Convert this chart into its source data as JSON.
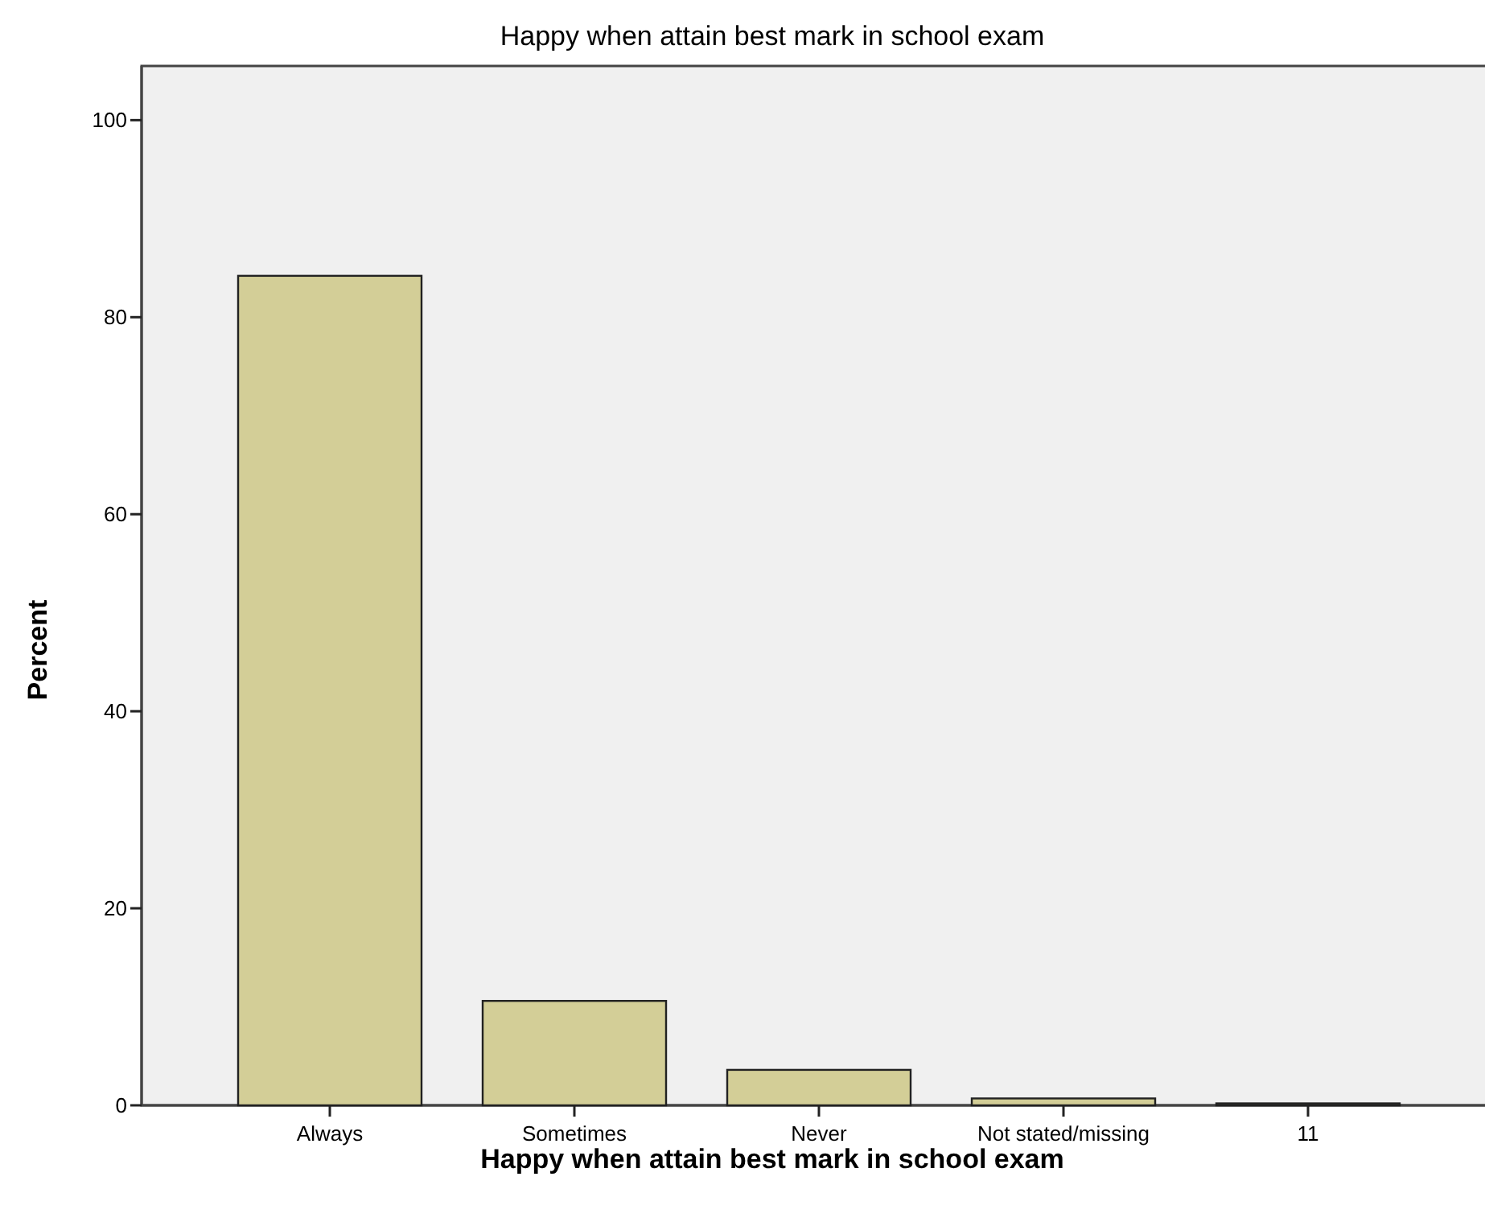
{
  "chart_data": {
    "type": "bar",
    "title": "Happy when attain best mark in school exam",
    "xlabel": "Happy when attain best mark in school exam",
    "ylabel": "Percent",
    "categories": [
      "Always",
      "Sometimes",
      "Never",
      "Not stated/missing",
      "11"
    ],
    "values": [
      84.2,
      10.6,
      3.6,
      0.7,
      0.2
    ],
    "color": "#d3ce97",
    "ylim": [
      0,
      105.5
    ],
    "yticks": [
      0,
      20,
      40,
      60,
      80,
      100
    ],
    "grid": false
  }
}
